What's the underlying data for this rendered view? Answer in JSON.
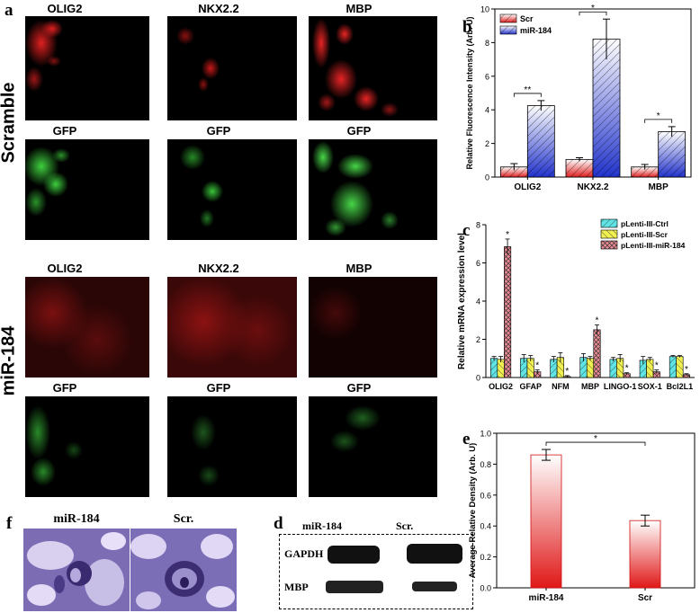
{
  "letters": {
    "a": "a",
    "b": "b",
    "c": "c",
    "d": "d",
    "e": "e",
    "f": "f"
  },
  "rows": {
    "scramble": "Scramble",
    "mir184": "miR-184"
  },
  "channels": {
    "top": [
      "OLIG2",
      "NKX2.2",
      "MBP"
    ],
    "gfp": [
      "GFP",
      "GFP",
      "GFP"
    ],
    "mid": [
      "OLIG2",
      "NKX2.2",
      "MBP"
    ],
    "gfp2": [
      "GFP",
      "GFP",
      "GFP"
    ]
  },
  "colors": {
    "red": "#d31c1c",
    "green": "#2fb02f",
    "blue": "#2233cc",
    "cyan": "#44dddd",
    "yellow": "#eeee33",
    "pink": "#e05a6a"
  },
  "histology": {
    "left": "miR-184",
    "right": "Scr."
  },
  "western": {
    "lane1": "miR-184",
    "lane2": "Scr.",
    "row1": "GAPDH",
    "row2": "MBP"
  },
  "chart_data": [
    {
      "type": "bar",
      "panel": "b",
      "categories": [
        "OLIG2",
        "NKX2.2",
        "MBP"
      ],
      "series": [
        {
          "name": "Scr",
          "values": [
            0.6,
            1.05,
            0.6
          ],
          "errors": [
            0.2,
            0.1,
            0.15
          ]
        },
        {
          "name": "miR-184",
          "values": [
            4.25,
            8.2,
            2.7
          ],
          "errors": [
            0.3,
            1.2,
            0.3
          ]
        }
      ],
      "ylabel": "Relative Fluorescence Intensity (Arb. U)",
      "ylim": [
        0,
        10
      ],
      "yticks": [
        0,
        2,
        4,
        6,
        8,
        10
      ],
      "significance": [
        "**",
        "*",
        "*"
      ],
      "legend": "top-left"
    },
    {
      "type": "bar",
      "panel": "c",
      "categories": [
        "OLIG2",
        "GFAP",
        "NFM",
        "MBP",
        "LINGO-1",
        "SOX-1",
        "Bcl2L1"
      ],
      "series": [
        {
          "name": "pLenti-III-Ctrl",
          "values": [
            1.0,
            1.0,
            0.95,
            1.05,
            0.95,
            0.9,
            1.1
          ],
          "errors": [
            0.1,
            0.2,
            0.15,
            0.2,
            0.1,
            0.2,
            0.05
          ]
        },
        {
          "name": "pLenti-III-Scr",
          "values": [
            0.95,
            1.0,
            1.05,
            1.0,
            1.0,
            0.95,
            1.1
          ],
          "errors": [
            0.15,
            0.15,
            0.25,
            0.1,
            0.2,
            0.1,
            0.05
          ]
        },
        {
          "name": "pLenti-III-miR-184",
          "values": [
            6.85,
            0.3,
            0.05,
            2.5,
            0.2,
            0.3,
            0.15
          ],
          "errors": [
            0.4,
            0.1,
            0.05,
            0.25,
            0.05,
            0.1,
            0.05
          ]
        }
      ],
      "ylabel": "Relative mRNA expression level",
      "ylim": [
        0,
        8
      ],
      "yticks": [
        0,
        2,
        4,
        6,
        8
      ],
      "significance": [
        "*",
        "*",
        "*",
        "*",
        "*",
        "*",
        "*"
      ],
      "legend": "top-right"
    },
    {
      "type": "bar",
      "panel": "e",
      "categories": [
        "miR-184",
        "Scr"
      ],
      "values": [
        0.86,
        0.435
      ],
      "errors": [
        0.035,
        0.035
      ],
      "ylabel": "Average Relative Density (Arb. U)",
      "ylim": [
        0,
        1.0
      ],
      "yticks": [
        0.0,
        0.2,
        0.4,
        0.6,
        0.8,
        1.0
      ],
      "significance": "*"
    }
  ]
}
